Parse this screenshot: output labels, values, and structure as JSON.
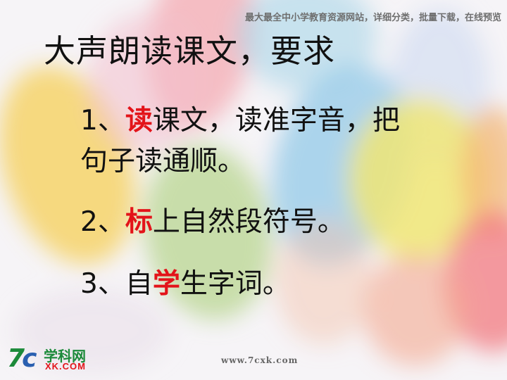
{
  "header": {
    "banner": "最大最全中小学教育资源网站，详细分类，批量下载，在线预览"
  },
  "slide": {
    "title": "大声朗读课文，要求",
    "items": [
      {
        "prefix": "1、",
        "highlight": "读",
        "rest_line1": "课文，读准字音，把",
        "rest_line2": "句子读通顺。"
      },
      {
        "prefix": "2、",
        "highlight": "标",
        "rest": "上自然段符号。"
      },
      {
        "prefix": "3、自",
        "highlight": "学",
        "rest": "生字词。"
      }
    ]
  },
  "logo": {
    "mark_7": "7",
    "mark_c": "c",
    "name": "学科网",
    "domain": "XK.COM"
  },
  "footer": {
    "url": "www.7cxk.com"
  },
  "colors": {
    "highlight": "#e3141a",
    "text": "#111111",
    "logo_green": "#1c8a3a",
    "logo_blue": "#2a5fb0"
  }
}
